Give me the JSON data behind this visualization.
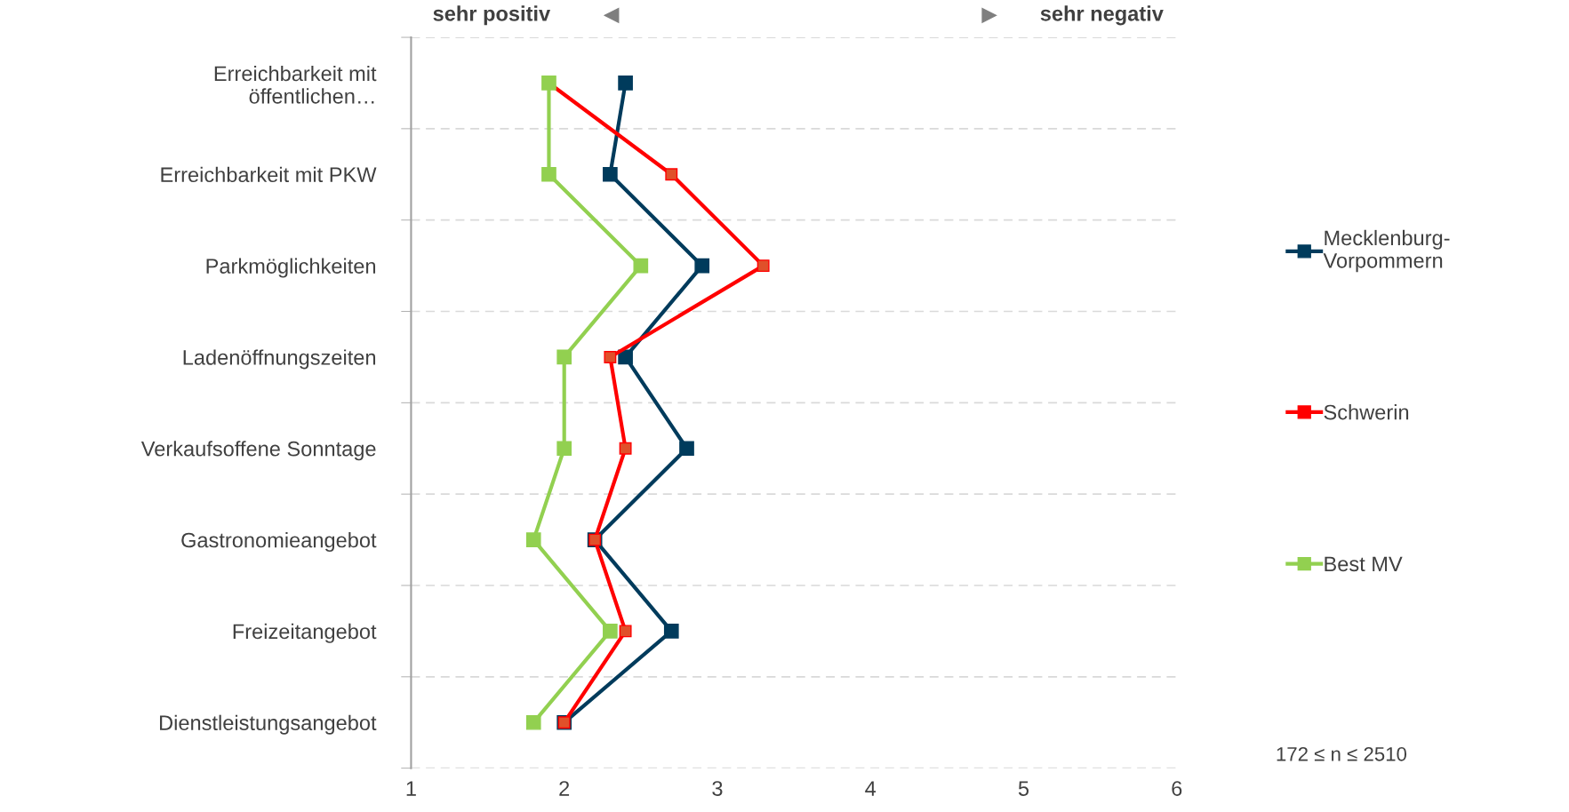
{
  "chart_data": {
    "type": "line",
    "orientation": "horizontal",
    "categories": [
      "Erreichbarkeit mit\nöffentlichen…",
      "Erreichbarkeit mit PKW",
      "Parkmöglichkeiten",
      "Ladenöffnungszeiten",
      "Verkaufsoffene Sonntage",
      "Gastronomieangebot",
      "Freizeitangebot",
      "Dienstleistungsangebot"
    ],
    "series": [
      {
        "name": "Mecklenburg-\nVorpommern",
        "color": "#003b5c",
        "values": [
          2.4,
          2.3,
          2.9,
          2.4,
          2.8,
          2.2,
          2.7,
          2.0
        ]
      },
      {
        "name": "Schwerin",
        "color": "#ff0000",
        "values": [
          1.9,
          2.7,
          3.3,
          2.3,
          2.4,
          2.2,
          2.4,
          2.0
        ]
      },
      {
        "name": "Best MV",
        "color": "#92d050",
        "values": [
          1.9,
          1.9,
          2.5,
          2.0,
          2.0,
          1.8,
          2.3,
          1.8
        ]
      }
    ],
    "xlim": [
      1,
      6
    ],
    "xticks": [
      1,
      2,
      3,
      4,
      5,
      6
    ],
    "grid": "y",
    "legend": "right",
    "marker": "square",
    "line_style": "solid",
    "annotations": [
      "sehr positiv",
      "sehr negativ",
      "172 ≤ n ≤ 2510"
    ]
  }
}
